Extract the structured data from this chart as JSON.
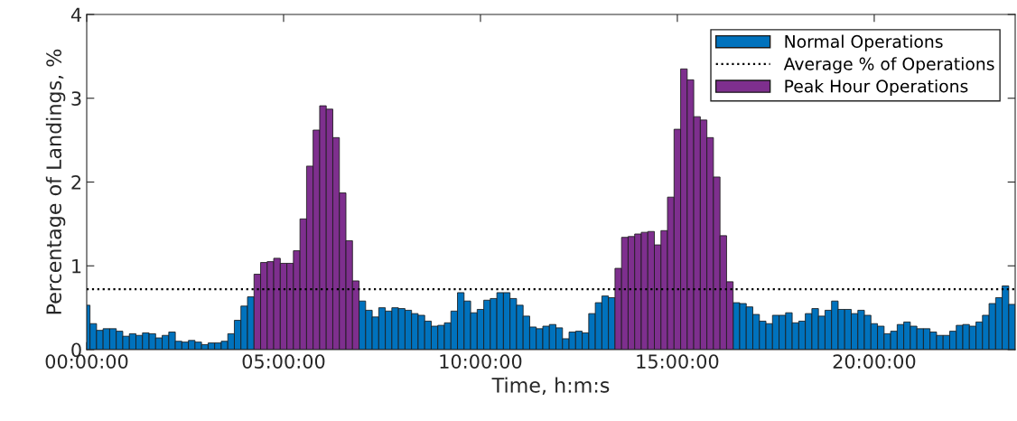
{
  "chart_data": {
    "type": "bar",
    "xlabel": "Time, h:m:s",
    "ylabel": "Percentage of Landings, %",
    "x": [
      0,
      0.167,
      0.333,
      0.5,
      0.667,
      0.833,
      1,
      1.167,
      1.333,
      1.5,
      1.667,
      1.833,
      2,
      2.167,
      2.333,
      2.5,
      2.667,
      2.833,
      3,
      3.167,
      3.333,
      3.5,
      3.667,
      3.833,
      4,
      4.167,
      4.333,
      4.5,
      4.667,
      4.833,
      5,
      5.167,
      5.333,
      5.5,
      5.667,
      5.833,
      6,
      6.167,
      6.333,
      6.5,
      6.667,
      6.833,
      7,
      7.167,
      7.333,
      7.5,
      7.667,
      7.833,
      8,
      8.167,
      8.333,
      8.5,
      8.667,
      8.833,
      9,
      9.167,
      9.333,
      9.5,
      9.667,
      9.833,
      10,
      10.167,
      10.333,
      10.5,
      10.667,
      10.833,
      11,
      11.167,
      11.333,
      11.5,
      11.667,
      11.833,
      12,
      12.167,
      12.333,
      12.5,
      12.667,
      12.833,
      13,
      13.167,
      13.333,
      13.5,
      13.667,
      13.833,
      14,
      14.167,
      14.333,
      14.5,
      14.667,
      14.833,
      15,
      15.167,
      15.333,
      15.5,
      15.667,
      15.833,
      16,
      16.167,
      16.333,
      16.5,
      16.667,
      16.833,
      17,
      17.167,
      17.333,
      17.5,
      17.667,
      17.833,
      18,
      18.167,
      18.333,
      18.5,
      18.667,
      18.833,
      19,
      19.167,
      19.333,
      19.5,
      19.667,
      19.833,
      20,
      20.167,
      20.333,
      20.5,
      20.667,
      20.833,
      21,
      21.167,
      21.333,
      21.5,
      21.667,
      21.833,
      22,
      22.167,
      22.333,
      22.5,
      22.667,
      22.833,
      23,
      23.167,
      23.333,
      23.5
    ],
    "series": [
      {
        "name": "Normal Operations",
        "color": "#0072bd",
        "values": [
          0.53,
          0.31,
          0.23,
          0.25,
          0.25,
          0.22,
          0.16,
          0.19,
          0.17,
          0.2,
          0.19,
          0.14,
          0.17,
          0.21,
          0.1,
          0.09,
          0.11,
          0.09,
          0.06,
          0.08,
          0.08,
          0.1,
          0.19,
          0.35,
          0.52,
          0.63,
          null,
          null,
          null,
          null,
          null,
          null,
          null,
          null,
          null,
          null,
          null,
          null,
          null,
          null,
          null,
          null,
          0.58,
          0.47,
          0.39,
          0.5,
          0.46,
          0.5,
          0.49,
          0.47,
          0.43,
          0.41,
          0.34,
          0.28,
          0.29,
          0.32,
          0.46,
          0.68,
          0.58,
          0.44,
          0.48,
          0.59,
          0.61,
          0.68,
          0.68,
          0.61,
          0.53,
          0.4,
          0.27,
          0.25,
          0.28,
          0.3,
          0.26,
          0.13,
          0.21,
          0.22,
          0.2,
          0.43,
          0.56,
          0.64,
          0.62,
          null,
          null,
          null,
          null,
          null,
          null,
          null,
          null,
          null,
          null,
          null,
          null,
          null,
          null,
          null,
          null,
          null,
          null,
          0.56,
          0.55,
          0.51,
          0.42,
          0.34,
          0.31,
          0.41,
          0.41,
          0.44,
          0.32,
          0.34,
          0.43,
          0.49,
          0.4,
          0.47,
          0.58,
          0.48,
          0.48,
          0.43,
          0.47,
          0.41,
          0.31,
          0.28,
          0.19,
          0.22,
          0.3,
          0.33,
          0.28,
          0.25,
          0.25,
          0.21,
          0.17,
          0.17,
          0.22,
          0.29,
          0.3,
          0.28,
          0.33,
          0.41,
          0.55,
          0.62,
          0.76,
          0.54
        ]
      },
      {
        "name": "Peak Hour Operations",
        "color": "#7e2f8e",
        "values": [
          null,
          null,
          null,
          null,
          null,
          null,
          null,
          null,
          null,
          null,
          null,
          null,
          null,
          null,
          null,
          null,
          null,
          null,
          null,
          null,
          null,
          null,
          null,
          null,
          null,
          null,
          0.9,
          1.04,
          1.05,
          1.09,
          1.03,
          1.03,
          1.18,
          1.56,
          2.19,
          2.62,
          2.91,
          2.87,
          2.53,
          1.87,
          1.3,
          0.82,
          null,
          null,
          null,
          null,
          null,
          null,
          null,
          null,
          null,
          null,
          null,
          null,
          null,
          null,
          null,
          null,
          null,
          null,
          null,
          null,
          null,
          null,
          null,
          null,
          null,
          null,
          null,
          null,
          null,
          null,
          null,
          null,
          null,
          null,
          null,
          null,
          null,
          null,
          null,
          0.97,
          1.34,
          1.35,
          1.38,
          1.4,
          1.41,
          1.25,
          1.42,
          1.82,
          2.63,
          3.35,
          3.22,
          2.78,
          2.74,
          2.53,
          2.06,
          1.36,
          0.81,
          null,
          null,
          null,
          null,
          null,
          null,
          null,
          null,
          null,
          null,
          null,
          null,
          null,
          null,
          null,
          null,
          null,
          null,
          null,
          null,
          null,
          null,
          null,
          null,
          null,
          null,
          null,
          null,
          null,
          null,
          null,
          null,
          null,
          null,
          null,
          null,
          null,
          null,
          null,
          null,
          null,
          null,
          null
        ]
      }
    ],
    "ref_lines": [
      {
        "axis": "y",
        "value": 0.72,
        "label": "Average % of Operations",
        "color": "#000000",
        "line_style": "dotted"
      }
    ],
    "xlim": [
      0,
      23.58
    ],
    "xticks": [
      {
        "value": 0,
        "label": "00:00:00"
      },
      {
        "value": 5,
        "label": "05:00:00"
      },
      {
        "value": 10,
        "label": "10:00:00"
      },
      {
        "value": 15,
        "label": "15:00:00"
      },
      {
        "value": 20,
        "label": "20:00:00"
      }
    ],
    "ylim": [
      0,
      4
    ],
    "yticks": [
      0,
      1,
      2,
      3,
      4
    ],
    "grid": false,
    "legend": "top right"
  }
}
